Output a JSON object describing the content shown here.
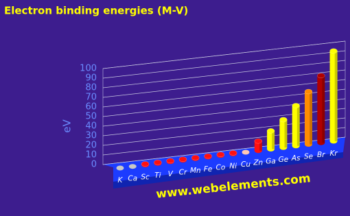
{
  "chart_data": {
    "type": "bar3d",
    "title": "Electron binding energies (M-V)",
    "ylabel": "eV",
    "footer": "www.webelements.com",
    "categories": [
      "K",
      "Ca",
      "Sc",
      "Ti",
      "V",
      "Cr",
      "Mn",
      "Fe",
      "Co",
      "Ni",
      "Cu",
      "Zn",
      "Ga",
      "Ge",
      "As",
      "Se",
      "Br",
      "Kr"
    ],
    "values": [
      null,
      null,
      1,
      1,
      1,
      1,
      1,
      1,
      1,
      1,
      null,
      10,
      19,
      29,
      42,
      55,
      70,
      94
    ],
    "colors": [
      "#c8c8c8",
      "#c8c8c8",
      "#ff1010",
      "#ff1010",
      "#ff1010",
      "#ff1010",
      "#ff1010",
      "#ff1010",
      "#ff1010",
      "#ff1010",
      "#ffc8b4",
      "#ff1010",
      "#ffff00",
      "#ffff00",
      "#ffff00",
      "#ff8c00",
      "#b00000",
      "#ffff00"
    ],
    "ylim": [
      0,
      100
    ],
    "yticks": [
      0,
      10,
      20,
      30,
      40,
      50,
      60,
      70,
      80,
      90,
      100
    ],
    "grid": true
  }
}
